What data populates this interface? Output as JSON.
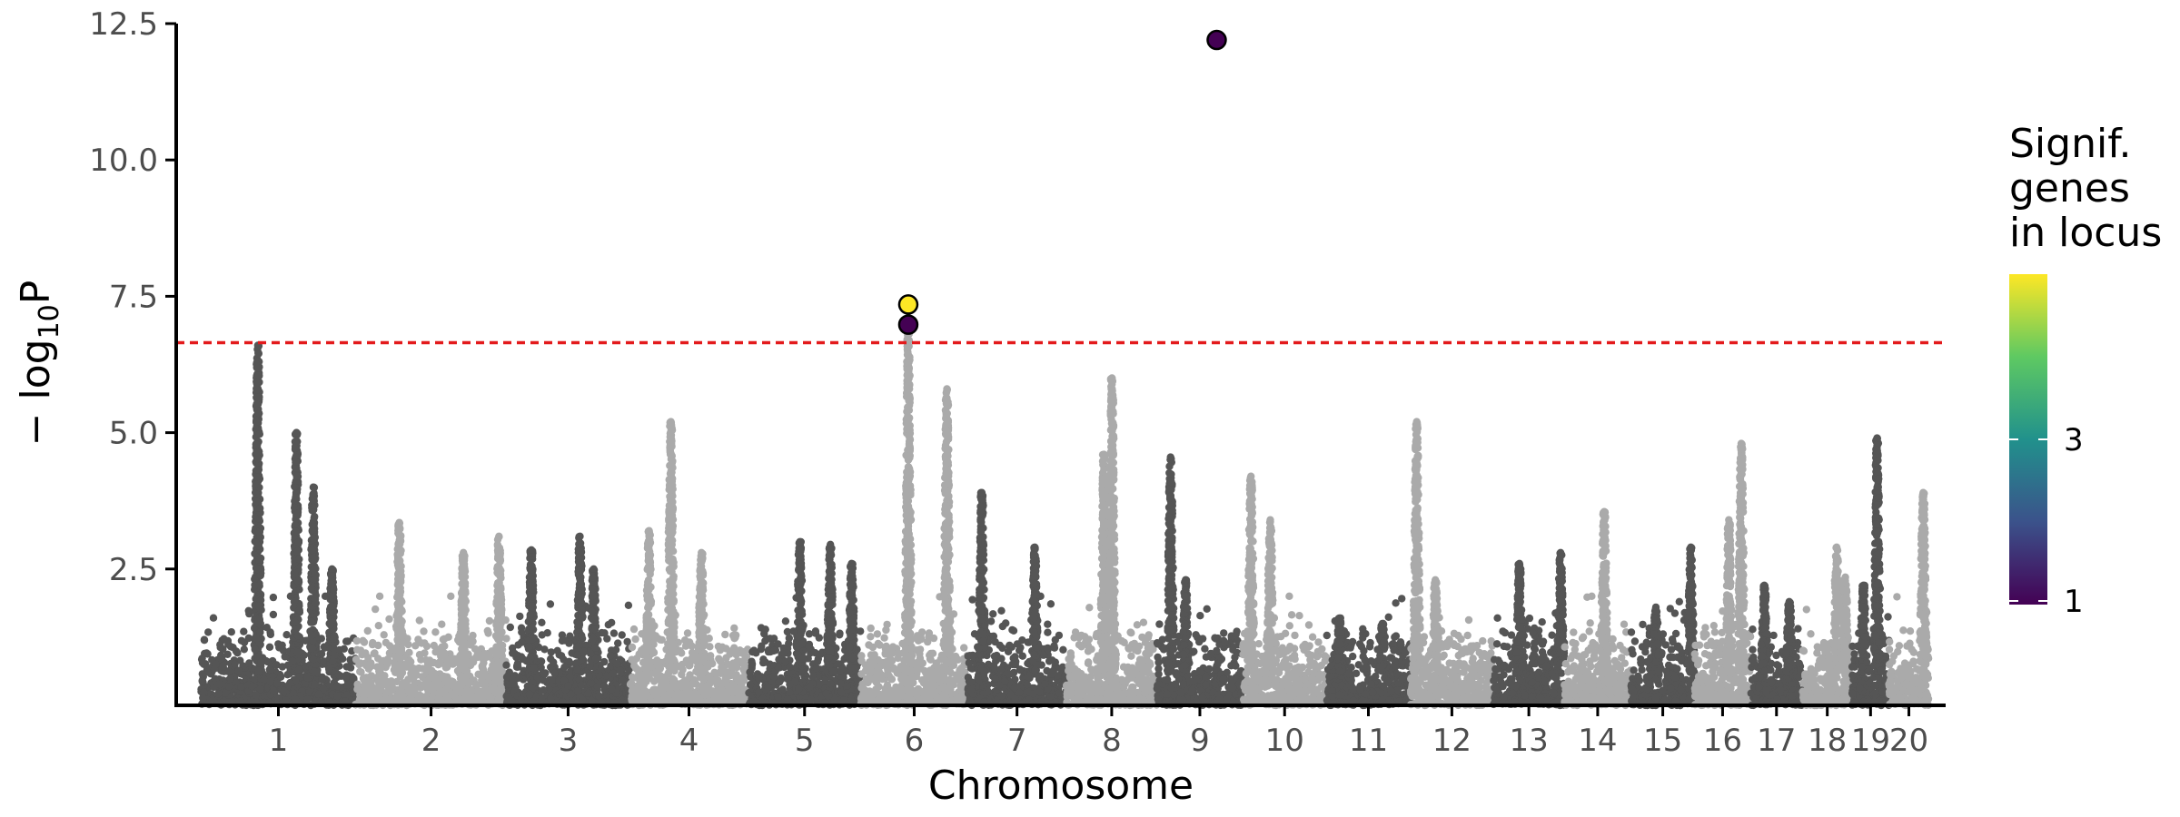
{
  "chart_data": {
    "type": "scatter",
    "xlabel": "Chromosome",
    "ylabel_main": "− log",
    "ylabel_sub": "10",
    "ylabel_tail": "P",
    "ylim": [
      0,
      12.5
    ],
    "yticks": [
      2.5,
      5.0,
      7.5,
      10.0,
      12.5
    ],
    "ytick_labels": [
      "2.5",
      "5.0",
      "7.5",
      "10.0",
      "12.5"
    ],
    "threshold": 6.65,
    "threshold_color": "#e31a1c",
    "colors": {
      "dark": "#555555",
      "light": "#aaaaaa"
    },
    "chromosomes": [
      {
        "label": "1",
        "start": 0.0,
        "end": 248.0,
        "peaks": [
          [
            91,
            6.6
          ],
          [
            153,
            5.0
          ],
          [
            180,
            4.0
          ],
          [
            210,
            2.5
          ]
        ]
      },
      {
        "label": "2",
        "start": 248.0,
        "end": 490.0,
        "peaks": [
          [
            70,
            3.35
          ],
          [
            173,
            2.8
          ],
          [
            230,
            3.1
          ]
        ]
      },
      {
        "label": "3",
        "start": 490.0,
        "end": 688.0,
        "peaks": [
          [
            40,
            2.85
          ],
          [
            118,
            3.1
          ],
          [
            140,
            2.5
          ]
        ]
      },
      {
        "label": "4",
        "start": 688.0,
        "end": 878.0,
        "peaks": [
          [
            31,
            3.2
          ],
          [
            66,
            5.2
          ],
          [
            115,
            2.8
          ]
        ]
      },
      {
        "label": "5",
        "start": 878.0,
        "end": 1059.0,
        "peaks": [
          [
            83,
            3.0
          ],
          [
            132,
            2.95
          ],
          [
            166,
            2.6
          ]
        ]
      },
      {
        "label": "6",
        "start": 1059.0,
        "end": 1230.0,
        "peaks": [
          [
            76,
            6.9
          ],
          [
            138,
            5.8
          ]
        ]
      },
      {
        "label": "7",
        "start": 1230.0,
        "end": 1389.0,
        "peaks": [
          [
            23,
            3.9
          ],
          [
            108,
            2.9
          ]
        ]
      },
      {
        "label": "8",
        "start": 1389.0,
        "end": 1534.0,
        "peaks": [
          [
            60,
            4.6
          ],
          [
            73,
            6.0
          ]
        ]
      },
      {
        "label": "9",
        "start": 1534.0,
        "end": 1672.0,
        "peaks": [
          [
            22,
            4.55
          ],
          [
            46,
            2.3
          ]
        ]
      },
      {
        "label": "10",
        "start": 1672.0,
        "end": 1806.0,
        "peaks": [
          [
            13,
            4.2
          ],
          [
            44,
            3.4
          ]
        ]
      },
      {
        "label": "11",
        "start": 1806.0,
        "end": 1941.0,
        "peaks": [
          [
            21,
            1.6
          ],
          [
            90,
            1.5
          ]
        ]
      },
      {
        "label": "12",
        "start": 1941.0,
        "end": 2074.0,
        "peaks": [
          [
            10,
            5.2
          ],
          [
            40,
            2.3
          ]
        ]
      },
      {
        "label": "13",
        "start": 2074.0,
        "end": 2188.0,
        "peaks": [
          [
            42,
            2.6
          ],
          [
            108,
            2.8
          ]
        ]
      },
      {
        "label": "14",
        "start": 2188.0,
        "end": 2295.0,
        "peaks": [
          [
            64,
            3.55
          ]
        ]
      },
      {
        "label": "15",
        "start": 2295.0,
        "end": 2397.0,
        "peaks": [
          [
            40,
            1.8
          ],
          [
            96,
            2.9
          ]
        ]
      },
      {
        "label": "16",
        "start": 2397.0,
        "end": 2487.0,
        "peaks": [
          [
            55,
            3.4
          ],
          [
            75,
            4.8
          ]
        ]
      },
      {
        "label": "17",
        "start": 2487.0,
        "end": 2570.0,
        "peaks": [
          [
            22,
            2.2
          ],
          [
            62,
            1.9
          ]
        ]
      },
      {
        "label": "18",
        "start": 2570.0,
        "end": 2650.0,
        "peaks": [
          [
            55,
            2.9
          ],
          [
            69,
            2.35
          ]
        ]
      },
      {
        "label": "19",
        "start": 2650.0,
        "end": 2709.0,
        "peaks": [
          [
            40,
            4.9
          ],
          [
            18,
            2.2
          ]
        ]
      },
      {
        "label": "20",
        "start": 2709.0,
        "end": 2773.0,
        "peaks": [
          [
            55,
            3.9
          ]
        ]
      }
    ],
    "xlim": [
      -40,
      2800
    ],
    "highlighted": [
      {
        "x": 1135,
        "y": 7.35,
        "genes": 5,
        "color": "#fde725"
      },
      {
        "x": 1135,
        "y": 6.98,
        "genes": 1,
        "color": "#440154"
      },
      {
        "x": 1630,
        "y": 12.2,
        "genes": 1,
        "color": "#440154"
      }
    ],
    "legend": {
      "title_lines": [
        "Signif.",
        "genes",
        "in locus"
      ],
      "tick_labels": [
        "1",
        "3"
      ],
      "tick_values": [
        1,
        3
      ],
      "range": [
        1,
        5
      ],
      "gradient": [
        "#440154",
        "#3b528b",
        "#21918c",
        "#5ec962",
        "#fde725"
      ]
    }
  }
}
